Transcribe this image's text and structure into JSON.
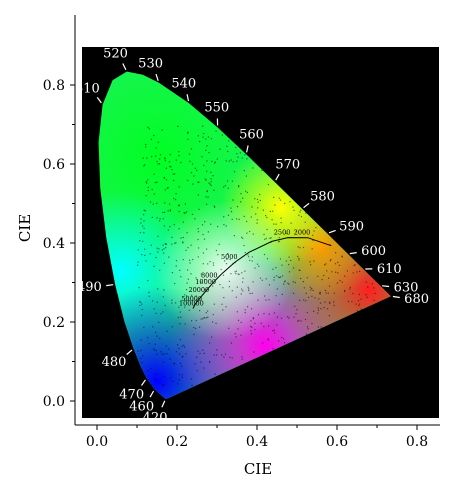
{
  "chart_data": {
    "type": "scatter",
    "title": "",
    "xlabel": "CIE",
    "ylabel": "CIE",
    "xlim": [
      -0.05,
      0.82
    ],
    "ylim": [
      -0.05,
      0.88
    ],
    "x_ticks": [
      {
        "value": 0.0,
        "label": "0.0"
      },
      {
        "value": 0.2,
        "label": "0.2"
      },
      {
        "value": 0.4,
        "label": "0.4"
      },
      {
        "value": 0.6,
        "label": "0.6"
      },
      {
        "value": 0.8,
        "label": "0.8"
      }
    ],
    "y_ticks": [
      {
        "value": 0.0,
        "label": "0.0"
      },
      {
        "value": 0.2,
        "label": "0.2"
      },
      {
        "value": 0.4,
        "label": "0.4"
      },
      {
        "value": 0.6,
        "label": "0.6"
      },
      {
        "value": 0.8,
        "label": "0.8"
      }
    ],
    "background_color": "#000000",
    "spectral_locus": [
      {
        "wl": 380,
        "x": 0.1741,
        "y": 0.005
      },
      {
        "wl": 420,
        "x": 0.1714,
        "y": 0.0051,
        "label": "420"
      },
      {
        "wl": 440,
        "x": 0.1644,
        "y": 0.0109
      },
      {
        "wl": 460,
        "x": 0.144,
        "y": 0.0297,
        "label": "460"
      },
      {
        "wl": 470,
        "x": 0.1241,
        "y": 0.0578,
        "label": "470"
      },
      {
        "wl": 475,
        "x": 0.1096,
        "y": 0.0868
      },
      {
        "wl": 480,
        "x": 0.0913,
        "y": 0.1327,
        "label": "480"
      },
      {
        "wl": 485,
        "x": 0.0687,
        "y": 0.2007
      },
      {
        "wl": 490,
        "x": 0.0454,
        "y": 0.295,
        "label": "490"
      },
      {
        "wl": 495,
        "x": 0.0235,
        "y": 0.4127
      },
      {
        "wl": 500,
        "x": 0.0082,
        "y": 0.5384
      },
      {
        "wl": 505,
        "x": 0.0039,
        "y": 0.6548
      },
      {
        "wl": 510,
        "x": 0.0139,
        "y": 0.7502,
        "label": "510"
      },
      {
        "wl": 515,
        "x": 0.0389,
        "y": 0.812
      },
      {
        "wl": 520,
        "x": 0.0743,
        "y": 0.8338,
        "label": "520"
      },
      {
        "wl": 525,
        "x": 0.1142,
        "y": 0.8262
      },
      {
        "wl": 530,
        "x": 0.1547,
        "y": 0.8059,
        "label": "530"
      },
      {
        "wl": 540,
        "x": 0.2296,
        "y": 0.7543,
        "label": "540"
      },
      {
        "wl": 550,
        "x": 0.3016,
        "y": 0.6923,
        "label": "550"
      },
      {
        "wl": 560,
        "x": 0.3731,
        "y": 0.6245,
        "label": "560"
      },
      {
        "wl": 570,
        "x": 0.4441,
        "y": 0.5547,
        "label": "570"
      },
      {
        "wl": 580,
        "x": 0.5125,
        "y": 0.4866,
        "label": "580"
      },
      {
        "wl": 590,
        "x": 0.5752,
        "y": 0.4242,
        "label": "590"
      },
      {
        "wl": 600,
        "x": 0.627,
        "y": 0.3725,
        "label": "600"
      },
      {
        "wl": 610,
        "x": 0.6658,
        "y": 0.334,
        "label": "610"
      },
      {
        "wl": 620,
        "x": 0.6915,
        "y": 0.3083
      },
      {
        "wl": 630,
        "x": 0.7079,
        "y": 0.292,
        "label": "630"
      },
      {
        "wl": 680,
        "x": 0.7347,
        "y": 0.2653,
        "label": "680"
      }
    ],
    "planckian_locus": [
      {
        "cct": 100000,
        "x": 0.2399,
        "y": 0.2341,
        "label": "100000"
      },
      {
        "cct": 50000,
        "x": 0.2457,
        "y": 0.2456,
        "label": "50000"
      },
      {
        "cct": 20000,
        "x": 0.2637,
        "y": 0.2683,
        "label": "20000"
      },
      {
        "cct": 10000,
        "x": 0.2807,
        "y": 0.2884,
        "label": "10000"
      },
      {
        "cct": 8000,
        "x": 0.295,
        "y": 0.3048,
        "label": "8000"
      },
      {
        "cct": 6500,
        "x": 0.3135,
        "y": 0.3236
      },
      {
        "cct": 5000,
        "x": 0.3451,
        "y": 0.3516,
        "label": "5000"
      },
      {
        "cct": 4000,
        "x": 0.3805,
        "y": 0.3768
      },
      {
        "cct": 3000,
        "x": 0.4369,
        "y": 0.4041
      },
      {
        "cct": 2500,
        "x": 0.477,
        "y": 0.4137,
        "label": "2500"
      },
      {
        "cct": 2000,
        "x": 0.5267,
        "y": 0.4133,
        "label": "2000"
      },
      {
        "cct": 1500,
        "x": 0.5857,
        "y": 0.3931
      }
    ]
  }
}
